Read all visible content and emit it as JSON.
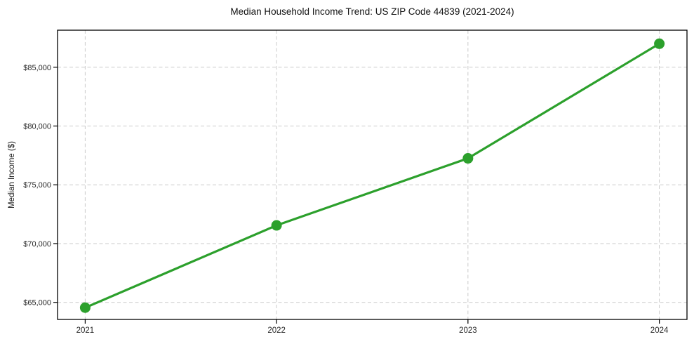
{
  "chart_data": {
    "type": "line",
    "title": "Median Household Income Trend: US ZIP Code 44839 (2021-2024)",
    "xlabel": "",
    "ylabel": "Median Income ($)",
    "categories": [
      "2021",
      "2022",
      "2023",
      "2024"
    ],
    "values": [
      64550,
      71550,
      77250,
      87000
    ],
    "y_ticks": {
      "values": [
        65000,
        70000,
        75000,
        80000,
        85000
      ],
      "labels": [
        "$65,000",
        "$70,000",
        "$75,000",
        "$80,000",
        "$85,000"
      ]
    },
    "ylim": [
      63550,
      88150
    ],
    "grid": true,
    "grid_style": "dashed",
    "legend_position": "none",
    "line_color": "#2ca02c",
    "marker": "circle",
    "grid_color": "#cbcbcb",
    "axis_color": "#000000",
    "tick_label_color": "#262626"
  }
}
